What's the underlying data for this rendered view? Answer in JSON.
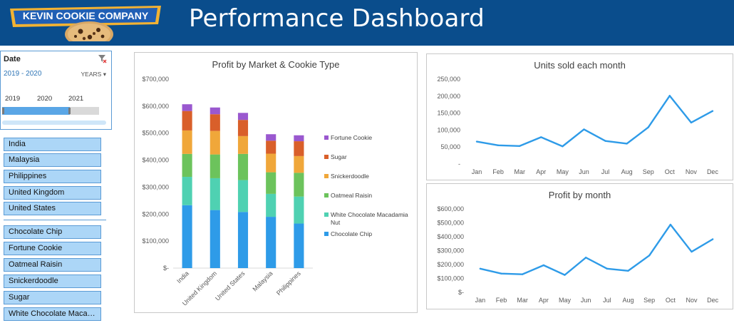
{
  "header": {
    "logo_text": "KEVIN COOKIE COMPANY",
    "title": "Performance Dashboard",
    "background": "#0a4d8c"
  },
  "timeline": {
    "title": "Date",
    "range_label": "2019 - 2020",
    "level_label": "YEARS",
    "years": [
      "2019",
      "2020",
      "2021"
    ],
    "filter_icon": "clear-filter-icon"
  },
  "market_slicer": {
    "items": [
      "India",
      "Malaysia",
      "Philippines",
      "United Kingdom",
      "United States"
    ]
  },
  "product_slicer": {
    "items": [
      "Chocolate Chip",
      "Fortune Cookie",
      "Oatmeal Raisin",
      "Snickerdoodle",
      "Sugar",
      "White Chocolate Maca…"
    ]
  },
  "chart_data": [
    {
      "type": "bar",
      "stacked": true,
      "title": "Profit by Market & Cookie Type",
      "categories": [
        "India",
        "United Kingdom",
        "United States",
        "Malaysia",
        "Philippines"
      ],
      "y_ticks": [
        "$-",
        "$100,000",
        "$200,000",
        "$300,000",
        "$400,000",
        "$500,000",
        "$600,000",
        "$700,000"
      ],
      "ylim": [
        0,
        700000
      ],
      "legend_position": "right",
      "series": [
        {
          "name": "Chocolate Chip",
          "color": "#2e9be8",
          "values": [
            233000,
            215000,
            208000,
            190000,
            165000
          ]
        },
        {
          "name": "White Chocolate Macadamia Nut",
          "color": "#4fd1b2",
          "values": [
            105000,
            118000,
            118000,
            85000,
            100000
          ]
        },
        {
          "name": "Oatmeal Raisin",
          "color": "#6cc35c",
          "values": [
            85000,
            88000,
            97000,
            80000,
            88000
          ]
        },
        {
          "name": "Snickerdoodle",
          "color": "#f0a73a",
          "values": [
            87000,
            87000,
            66000,
            69000,
            62000
          ]
        },
        {
          "name": "Sugar",
          "color": "#d95f2a",
          "values": [
            72000,
            62000,
            60000,
            48000,
            55000
          ]
        },
        {
          "name": "Fortune Cookie",
          "color": "#9a58cf",
          "values": [
            25000,
            25000,
            26000,
            24000,
            22000
          ]
        }
      ]
    },
    {
      "type": "line",
      "title": "Units sold each month",
      "categories": [
        "Jan",
        "Feb",
        "Mar",
        "Apr",
        "May",
        "Jun",
        "Jul",
        "Aug",
        "Sep",
        "Oct",
        "Nov",
        "Dec"
      ],
      "values": [
        66000,
        55000,
        53000,
        79000,
        52000,
        102000,
        68000,
        60000,
        108000,
        201000,
        122000,
        156000
      ],
      "y_ticks": [
        "-",
        "50,000",
        "100,000",
        "150,000",
        "200,000",
        "250,000"
      ],
      "ylim": [
        0,
        250000
      ],
      "color": "#2e9be8"
    },
    {
      "type": "line",
      "title": "Profit by month",
      "categories": [
        "Jan",
        "Feb",
        "Mar",
        "Apr",
        "May",
        "Jun",
        "Jul",
        "Aug",
        "Sep",
        "Oct",
        "Nov",
        "Dec"
      ],
      "values": [
        170000,
        135000,
        130000,
        195000,
        125000,
        250000,
        170000,
        155000,
        265000,
        487000,
        292000,
        382000
      ],
      "y_ticks": [
        "$-",
        "$100,000",
        "$200,000",
        "$300,000",
        "$400,000",
        "$500,000",
        "$600,000"
      ],
      "ylim": [
        0,
        600000
      ],
      "color": "#2e9be8"
    }
  ]
}
